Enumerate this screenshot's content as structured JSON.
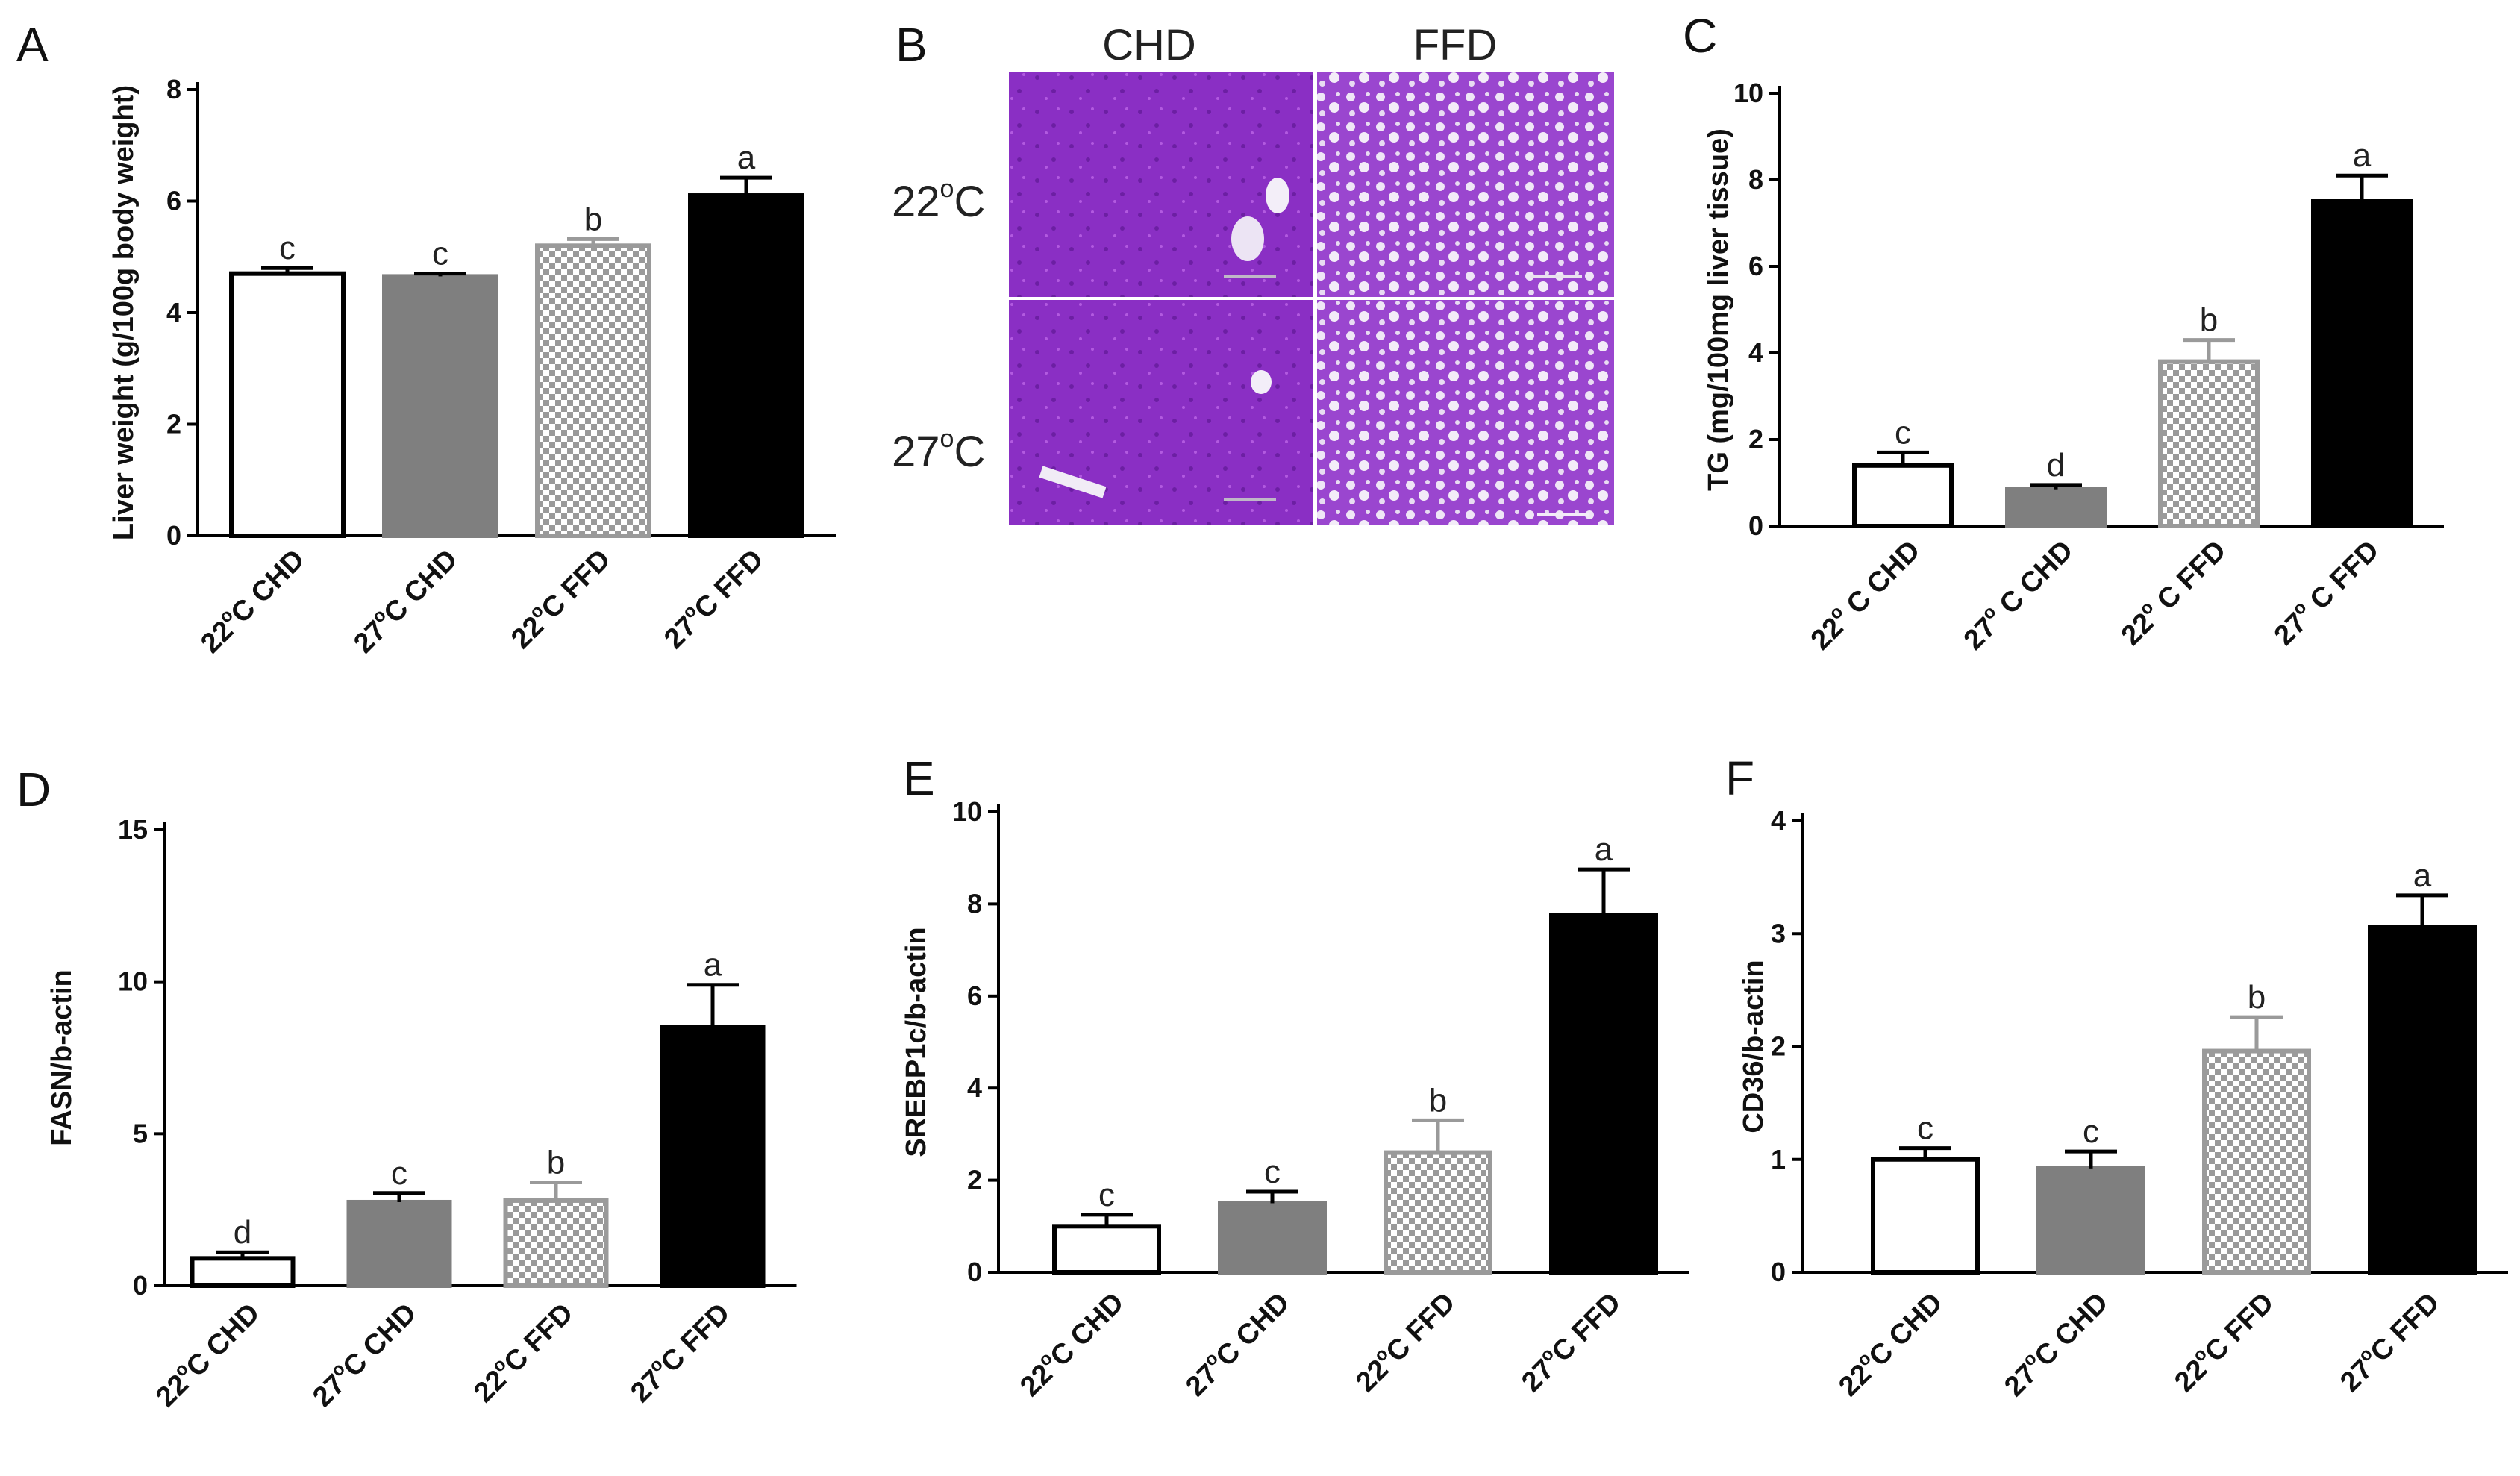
{
  "panel_b": {
    "letter": "B",
    "col_labels": [
      "CHD",
      "FFD"
    ],
    "row_labels": [
      "22",
      "27"
    ],
    "degree_symbol": "o",
    "unit": "C"
  },
  "chart_data": [
    {
      "id": "A",
      "letter": "A",
      "type": "bar",
      "title": "",
      "xlabel": "",
      "ylabel": "Liver weight (g/100g body weight)",
      "ylim": [
        0,
        8
      ],
      "yticks": [
        0,
        2,
        4,
        6,
        8
      ],
      "categories": [
        {
          "temp": "22",
          "sup": "o",
          "rest": "C CHD"
        },
        {
          "temp": "27",
          "sup": "o",
          "rest": "C CHD"
        },
        {
          "temp": "22",
          "sup": "o",
          "rest": "C FFD"
        },
        {
          "temp": "27",
          "sup": "o",
          "rest": "C FFD"
        }
      ],
      "values": [
        4.7,
        4.65,
        5.2,
        6.1
      ],
      "errors": [
        0.1,
        0.05,
        0.12,
        0.32
      ],
      "significance": [
        "c",
        "c",
        "b",
        "a"
      ]
    },
    {
      "id": "C",
      "letter": "C",
      "type": "bar",
      "title": "",
      "xlabel": "",
      "ylabel": "TG (mg/100mg liver tissue)",
      "ylim": [
        0,
        10
      ],
      "yticks": [
        0,
        2,
        4,
        6,
        8,
        10
      ],
      "categories": [
        {
          "temp": "22",
          "sup": "o",
          "rest": " C CHD"
        },
        {
          "temp": "27",
          "sup": "o",
          "rest": " C CHD"
        },
        {
          "temp": "22",
          "sup": "o",
          "rest": " C FFD"
        },
        {
          "temp": "27",
          "sup": "o",
          "rest": " C FFD"
        }
      ],
      "values": [
        1.4,
        0.85,
        3.8,
        7.5
      ],
      "errors": [
        0.3,
        0.1,
        0.5,
        0.6
      ],
      "significance": [
        "c",
        "d",
        "b",
        "a"
      ]
    },
    {
      "id": "D",
      "letter": "D",
      "type": "bar",
      "title": "",
      "xlabel": "",
      "ylabel": "FASN/b-actin",
      "ylim": [
        0,
        15
      ],
      "yticks": [
        0,
        5,
        10,
        15
      ],
      "categories": [
        {
          "temp": "22",
          "sup": "o",
          "rest": "C CHD"
        },
        {
          "temp": "27",
          "sup": "o",
          "rest": "C CHD"
        },
        {
          "temp": "22",
          "sup": "o",
          "rest": "C FFD"
        },
        {
          "temp": "27",
          "sup": "o",
          "rest": "C FFD"
        }
      ],
      "values": [
        0.9,
        2.75,
        2.8,
        8.5
      ],
      "errors": [
        0.2,
        0.3,
        0.6,
        1.4
      ],
      "significance": [
        "d",
        "c",
        "b",
        "a"
      ]
    },
    {
      "id": "E",
      "letter": "E",
      "type": "bar",
      "title": "",
      "xlabel": "",
      "ylabel": "SREBP1c/b-actin",
      "ylim": [
        0,
        10
      ],
      "yticks": [
        0,
        2,
        4,
        6,
        8,
        10
      ],
      "categories": [
        {
          "temp": "22",
          "sup": "o",
          "rest": "C CHD"
        },
        {
          "temp": "27",
          "sup": "o",
          "rest": "C CHD"
        },
        {
          "temp": "22",
          "sup": "o",
          "rest": "C FFD"
        },
        {
          "temp": "27",
          "sup": "o",
          "rest": "C FFD"
        }
      ],
      "values": [
        1.0,
        1.5,
        2.6,
        7.75
      ],
      "errors": [
        0.25,
        0.25,
        0.7,
        1.0
      ],
      "significance": [
        "c",
        "c",
        "b",
        "a"
      ]
    },
    {
      "id": "F",
      "letter": "F",
      "type": "bar",
      "title": "",
      "xlabel": "",
      "ylabel": "CD36/b-actin",
      "ylim": [
        0,
        4
      ],
      "yticks": [
        0,
        1,
        2,
        3,
        4
      ],
      "categories": [
        {
          "temp": "22",
          "sup": "o",
          "rest": "C CHD"
        },
        {
          "temp": "27",
          "sup": "o",
          "rest": "C CHD"
        },
        {
          "temp": "22",
          "sup": "o",
          "rest": "C FFD"
        },
        {
          "temp": "27",
          "sup": "o",
          "rest": "C FFD"
        }
      ],
      "values": [
        1.0,
        0.92,
        1.96,
        3.06
      ],
      "errors": [
        0.1,
        0.15,
        0.3,
        0.28
      ],
      "significance": [
        "c",
        "c",
        "b",
        "a"
      ]
    }
  ]
}
